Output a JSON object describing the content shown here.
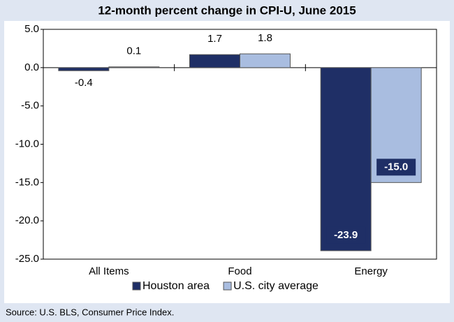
{
  "chart_data": {
    "type": "bar",
    "title": "12-month percent change in CPI-U, June 2015",
    "categories": [
      "All Items",
      "Food",
      "Energy"
    ],
    "series": [
      {
        "name": "Houston area",
        "color": "#1f2f66",
        "values": [
          -0.4,
          1.7,
          -23.9
        ],
        "value_labels": [
          "-0.4",
          "1.7",
          "-23.9"
        ]
      },
      {
        "name": "U.S. city average",
        "color": "#a9bde0",
        "values": [
          0.1,
          1.8,
          -15.0
        ],
        "value_labels": [
          "0.1",
          "1.8",
          "-15.0"
        ]
      }
    ],
    "ylim": [
      -25,
      5
    ],
    "yticks": [
      {
        "value": 5,
        "label": "5.0"
      },
      {
        "value": 0,
        "label": "0.0"
      },
      {
        "value": -5,
        "label": "-5.0"
      },
      {
        "value": -10,
        "label": "-10.0"
      },
      {
        "value": -15,
        "label": "-15.0"
      },
      {
        "value": -20,
        "label": "-20.0"
      },
      {
        "value": -25,
        "label": "-25.0"
      }
    ],
    "legend": "bottom",
    "source": "Source: U.S. BLS, Consumer Price Index."
  }
}
